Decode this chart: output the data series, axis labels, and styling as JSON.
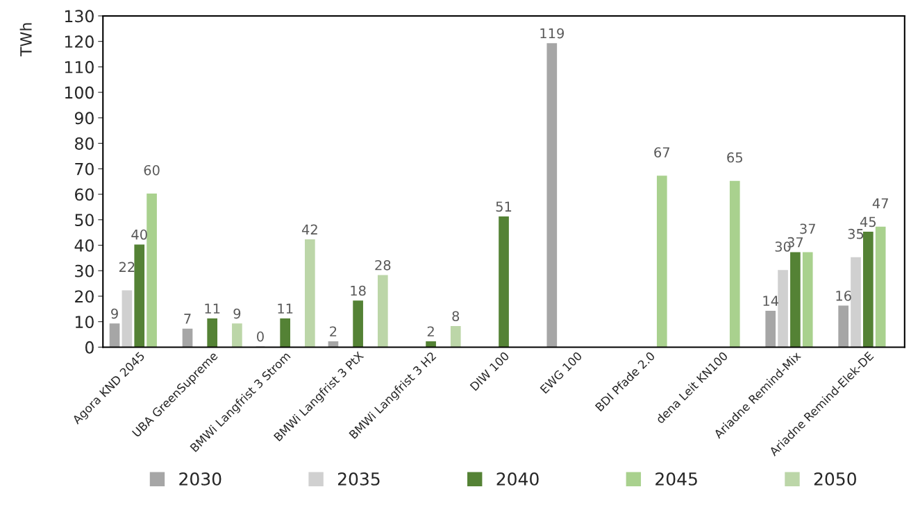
{
  "chart_data": {
    "type": "bar",
    "ylabel": "TWh",
    "categories": [
      "Agora KND 2045",
      "UBA GreenSupreme",
      "BMWi Langfrist 3 Strom",
      "BMWi Langfrist 3 PtX",
      "BMWi Langfrist 3 H2",
      "DIW 100",
      "EWG 100",
      "BDI Pfade 2.0",
      "dena Leit KN100",
      "Ariadne Remind-Mix",
      "Ariadne Remind-Elek-DE"
    ],
    "series": [
      {
        "name": "2030",
        "color": "#a6a6a6",
        "values": [
          9,
          7,
          0,
          2,
          null,
          null,
          119,
          null,
          null,
          14,
          16
        ]
      },
      {
        "name": "2035",
        "color": "#d0d0d0",
        "values": [
          22,
          null,
          null,
          null,
          null,
          null,
          null,
          null,
          null,
          30,
          35
        ]
      },
      {
        "name": "2040",
        "color": "#548235",
        "values": [
          40,
          11,
          11,
          18,
          2,
          51,
          null,
          null,
          null,
          37,
          45
        ]
      },
      {
        "name": "2045",
        "color": "#a9d18e",
        "values": [
          60,
          null,
          null,
          null,
          null,
          null,
          null,
          67,
          65,
          37,
          47
        ]
      },
      {
        "name": "2050",
        "color": "#bcd6a8",
        "values": [
          null,
          9,
          42,
          28,
          8,
          null,
          null,
          null,
          null,
          null,
          null
        ]
      }
    ],
    "ylim": [
      0,
      130
    ],
    "yticks": [
      0,
      10,
      20,
      30,
      40,
      50,
      60,
      70,
      80,
      90,
      100,
      110,
      120,
      130
    ],
    "data_labels": true,
    "grid": false,
    "legend": "bottom"
  }
}
